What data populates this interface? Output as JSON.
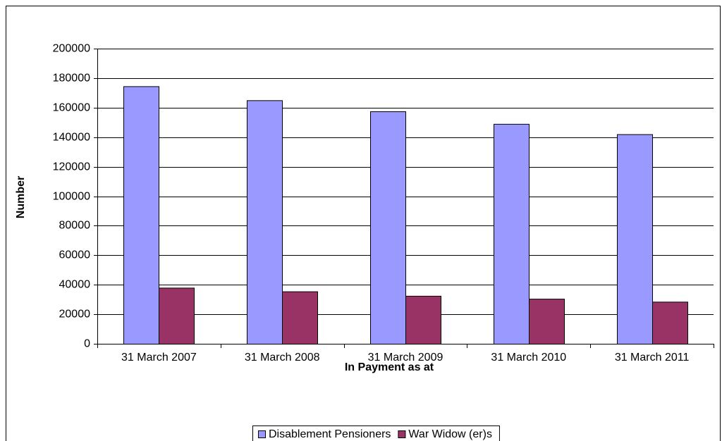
{
  "chart_data": {
    "type": "bar",
    "y_label": "Number",
    "x_label": "In Payment as at",
    "categories": [
      "31 March 2007",
      "31 March 2008",
      "31 March 2009",
      "31 March 2010",
      "31 March 2011"
    ],
    "series": [
      {
        "name": "Disablement Pensioners",
        "color": "#9999ff",
        "values": [
          174500,
          165000,
          157500,
          149000,
          142000
        ]
      },
      {
        "name": "War Widow (er)s",
        "color": "#993366",
        "values": [
          38000,
          35500,
          32500,
          30500,
          28500
        ]
      }
    ],
    "ylim": [
      0,
      200000
    ],
    "yticks": [
      0,
      20000,
      40000,
      60000,
      80000,
      100000,
      120000,
      140000,
      160000,
      180000,
      200000
    ],
    "grid": true,
    "legend": "bottom"
  }
}
